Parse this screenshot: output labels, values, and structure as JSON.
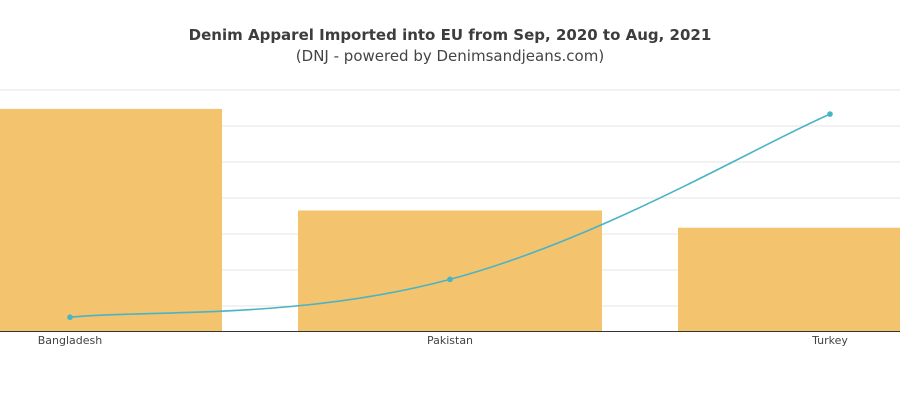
{
  "chart_data": {
    "type": "bar",
    "title": "Denim Apparel Imported into EU from Sep, 2020 to Aug, 2021",
    "subtitle": "(DNJ - powered by Denimsandjeans.com)",
    "categories": [
      "Bangladesh",
      "Pakistan",
      "Turkey"
    ],
    "series": [
      {
        "type": "bar",
        "values": [
          6.45,
          3.5,
          3.0
        ]
      },
      {
        "type": "line",
        "values": [
          0.4,
          1.5,
          6.3
        ]
      }
    ],
    "ylim": [
      0,
      7
    ],
    "grid": true,
    "legend": false
  },
  "colors": {
    "bar": "#f3c36e",
    "line": "#4ab3c6",
    "grid": "#e6e6e6",
    "axis": "#333333"
  }
}
